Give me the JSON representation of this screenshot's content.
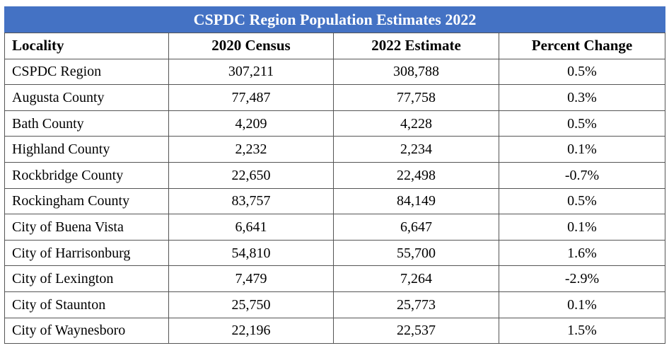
{
  "table": {
    "title": "CSPDC Region Population Estimates 2022",
    "headers": [
      "Locality",
      "2020 Census",
      "2022 Estimate",
      "Percent Change"
    ],
    "rows": [
      [
        "CSPDC Region",
        "307,211",
        "308,788",
        "0.5%"
      ],
      [
        "Augusta County",
        "77,487",
        "77,758",
        "0.3%"
      ],
      [
        "Bath County",
        "4,209",
        "4,228",
        "0.5%"
      ],
      [
        "Highland County",
        "2,232",
        "2,234",
        "0.1%"
      ],
      [
        "Rockbridge County",
        "22,650",
        "22,498",
        "-0.7%"
      ],
      [
        "Rockingham County",
        "83,757",
        "84,149",
        "0.5%"
      ],
      [
        "City of Buena Vista",
        "6,641",
        "6,647",
        "0.1%"
      ],
      [
        "City of Harrisonburg",
        "54,810",
        "55,700",
        "1.6%"
      ],
      [
        "City of Lexington",
        "7,479",
        "7,264",
        "-2.9%"
      ],
      [
        "City of Staunton",
        "25,750",
        "25,773",
        "0.1%"
      ],
      [
        "City of Waynesboro",
        "22,196",
        "22,537",
        "1.5%"
      ]
    ]
  },
  "colors": {
    "title_background": "#4472c4",
    "title_text": "#ffffff",
    "border": "#555555"
  }
}
